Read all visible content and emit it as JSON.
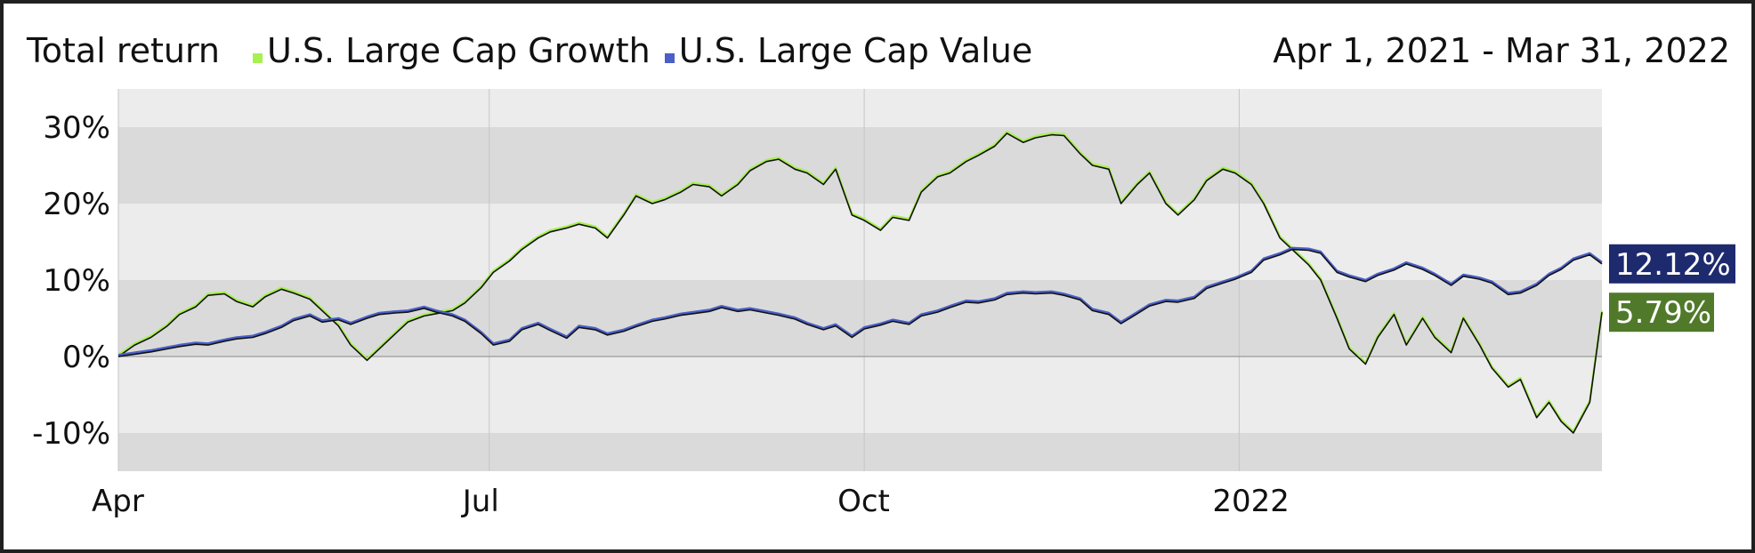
{
  "header": {
    "title": "Total return",
    "date_range": "Apr 1, 2021 - Mar 31, 2022"
  },
  "colors": {
    "growth": "#a8f050",
    "value": "#4a5fc8",
    "growth_label_bg": "#507a2a",
    "value_label_bg": "#1e2a6e",
    "band_dark": "#dadada",
    "band_light": "#ececec"
  },
  "chart_data": {
    "type": "line",
    "title": "Total return",
    "xlabel": "",
    "ylabel": "",
    "x_range": [
      "2021-04-01",
      "2022-03-31"
    ],
    "ylim": [
      -15,
      30
    ],
    "y_ticks": [
      30,
      20,
      10,
      0,
      -10
    ],
    "y_tick_labels": [
      "30%",
      "20%",
      "10%",
      "0%",
      "-10%"
    ],
    "x_ticks": [
      "2021-04-01",
      "2021-07-01",
      "2021-10-01",
      "2022-01-01"
    ],
    "x_tick_labels": [
      "Apr",
      "Jul",
      "Oct",
      "2022"
    ],
    "grid": true,
    "legend_position": "top",
    "series": [
      {
        "name": "U.S. Large Cap Growth",
        "end_label": "5.79%",
        "points": [
          [
            "2021-04-01",
            0
          ],
          [
            "2021-04-05",
            1.5
          ],
          [
            "2021-04-09",
            2.5
          ],
          [
            "2021-04-13",
            4
          ],
          [
            "2021-04-16",
            5.5
          ],
          [
            "2021-04-20",
            6.5
          ],
          [
            "2021-04-23",
            8
          ],
          [
            "2021-04-27",
            8.2
          ],
          [
            "2021-04-30",
            7.2
          ],
          [
            "2021-05-04",
            6.5
          ],
          [
            "2021-05-07",
            7.8
          ],
          [
            "2021-05-11",
            8.8
          ],
          [
            "2021-05-14",
            8.3
          ],
          [
            "2021-05-18",
            7.5
          ],
          [
            "2021-05-21",
            6
          ],
          [
            "2021-05-25",
            4
          ],
          [
            "2021-05-28",
            1.5
          ],
          [
            "2021-06-01",
            -0.5
          ],
          [
            "2021-06-04",
            1
          ],
          [
            "2021-06-08",
            3
          ],
          [
            "2021-06-11",
            4.5
          ],
          [
            "2021-06-15",
            5.3
          ],
          [
            "2021-06-18",
            5.6
          ],
          [
            "2021-06-22",
            6
          ],
          [
            "2021-06-25",
            7
          ],
          [
            "2021-06-29",
            9
          ],
          [
            "2021-07-02",
            11
          ],
          [
            "2021-07-06",
            12.5
          ],
          [
            "2021-07-09",
            14
          ],
          [
            "2021-07-13",
            15.5
          ],
          [
            "2021-07-16",
            16.3
          ],
          [
            "2021-07-20",
            16.8
          ],
          [
            "2021-07-23",
            17.3
          ],
          [
            "2021-07-27",
            16.8
          ],
          [
            "2021-07-30",
            15.5
          ],
          [
            "2021-08-03",
            18.5
          ],
          [
            "2021-08-06",
            21
          ],
          [
            "2021-08-10",
            20
          ],
          [
            "2021-08-13",
            20.5
          ],
          [
            "2021-08-17",
            21.5
          ],
          [
            "2021-08-20",
            22.5
          ],
          [
            "2021-08-24",
            22.2
          ],
          [
            "2021-08-27",
            21
          ],
          [
            "2021-08-31",
            22.5
          ],
          [
            "2021-09-03",
            24.3
          ],
          [
            "2021-09-07",
            25.5
          ],
          [
            "2021-09-10",
            25.8
          ],
          [
            "2021-09-14",
            24.5
          ],
          [
            "2021-09-17",
            24
          ],
          [
            "2021-09-21",
            22.5
          ],
          [
            "2021-09-24",
            24.5
          ],
          [
            "2021-09-28",
            18.5
          ],
          [
            "2021-10-01",
            17.8
          ],
          [
            "2021-10-05",
            16.5
          ],
          [
            "2021-10-08",
            18.2
          ],
          [
            "2021-10-12",
            17.8
          ],
          [
            "2021-10-15",
            21.5
          ],
          [
            "2021-10-19",
            23.5
          ],
          [
            "2021-10-22",
            24
          ],
          [
            "2021-10-26",
            25.5
          ],
          [
            "2021-10-29",
            26.3
          ],
          [
            "2021-11-02",
            27.5
          ],
          [
            "2021-11-05",
            29.2
          ],
          [
            "2021-11-09",
            28
          ],
          [
            "2021-11-12",
            28.6
          ],
          [
            "2021-11-16",
            29
          ],
          [
            "2021-11-19",
            28.9
          ],
          [
            "2021-11-23",
            26.5
          ],
          [
            "2021-11-26",
            25
          ],
          [
            "2021-11-30",
            24.5
          ],
          [
            "2021-12-03",
            20
          ],
          [
            "2021-12-07",
            22.5
          ],
          [
            "2021-12-10",
            24
          ],
          [
            "2021-12-14",
            20
          ],
          [
            "2021-12-17",
            18.5
          ],
          [
            "2021-12-21",
            20.5
          ],
          [
            "2021-12-24",
            23
          ],
          [
            "2021-12-28",
            24.5
          ],
          [
            "2021-12-31",
            24
          ],
          [
            "2022-01-04",
            22.5
          ],
          [
            "2022-01-07",
            20
          ],
          [
            "2022-01-11",
            15.5
          ],
          [
            "2022-01-14",
            14
          ],
          [
            "2022-01-18",
            12
          ],
          [
            "2022-01-21",
            10
          ],
          [
            "2022-01-25",
            5
          ],
          [
            "2022-01-28",
            1
          ],
          [
            "2022-02-01",
            -1
          ],
          [
            "2022-02-04",
            2.5
          ],
          [
            "2022-02-08",
            5.5
          ],
          [
            "2022-02-11",
            1.5
          ],
          [
            "2022-02-15",
            5
          ],
          [
            "2022-02-18",
            2.5
          ],
          [
            "2022-02-22",
            0.5
          ],
          [
            "2022-02-25",
            5
          ],
          [
            "2022-03-01",
            1.5
          ],
          [
            "2022-03-04",
            -1.5
          ],
          [
            "2022-03-08",
            -4
          ],
          [
            "2022-03-11",
            -3
          ],
          [
            "2022-03-15",
            -8
          ],
          [
            "2022-03-18",
            -6
          ],
          [
            "2022-03-21",
            -8.5
          ],
          [
            "2022-03-24",
            -10
          ],
          [
            "2022-03-28",
            -6
          ],
          [
            "2022-03-31",
            5.79
          ]
        ]
      },
      {
        "name": "U.S. Large Cap Value",
        "end_label": "12.12%",
        "points": [
          [
            "2021-04-01",
            0
          ],
          [
            "2021-04-05",
            0.3
          ],
          [
            "2021-04-09",
            0.6
          ],
          [
            "2021-04-13",
            1
          ],
          [
            "2021-04-16",
            1.3
          ],
          [
            "2021-04-20",
            1.6
          ],
          [
            "2021-04-23",
            1.5
          ],
          [
            "2021-04-27",
            2
          ],
          [
            "2021-04-30",
            2.3
          ],
          [
            "2021-05-04",
            2.5
          ],
          [
            "2021-05-07",
            3
          ],
          [
            "2021-05-11",
            3.8
          ],
          [
            "2021-05-14",
            4.7
          ],
          [
            "2021-05-18",
            5.3
          ],
          [
            "2021-05-21",
            4.5
          ],
          [
            "2021-05-25",
            4.8
          ],
          [
            "2021-05-28",
            4.2
          ],
          [
            "2021-06-01",
            5
          ],
          [
            "2021-06-04",
            5.5
          ],
          [
            "2021-06-08",
            5.7
          ],
          [
            "2021-06-11",
            5.8
          ],
          [
            "2021-06-15",
            6.3
          ],
          [
            "2021-06-18",
            5.8
          ],
          [
            "2021-06-22",
            5.3
          ],
          [
            "2021-06-25",
            4.6
          ],
          [
            "2021-06-29",
            3
          ],
          [
            "2021-07-02",
            1.5
          ],
          [
            "2021-07-06",
            2
          ],
          [
            "2021-07-09",
            3.5
          ],
          [
            "2021-07-13",
            4.2
          ],
          [
            "2021-07-16",
            3.4
          ],
          [
            "2021-07-20",
            2.4
          ],
          [
            "2021-07-23",
            3.8
          ],
          [
            "2021-07-27",
            3.5
          ],
          [
            "2021-07-30",
            2.8
          ],
          [
            "2021-08-03",
            3.3
          ],
          [
            "2021-08-06",
            3.9
          ],
          [
            "2021-08-10",
            4.6
          ],
          [
            "2021-08-13",
            4.9
          ],
          [
            "2021-08-17",
            5.4
          ],
          [
            "2021-08-20",
            5.6
          ],
          [
            "2021-08-24",
            5.9
          ],
          [
            "2021-08-27",
            6.4
          ],
          [
            "2021-08-31",
            5.9
          ],
          [
            "2021-09-03",
            6.1
          ],
          [
            "2021-09-07",
            5.7
          ],
          [
            "2021-09-10",
            5.4
          ],
          [
            "2021-09-14",
            4.9
          ],
          [
            "2021-09-17",
            4.2
          ],
          [
            "2021-09-21",
            3.5
          ],
          [
            "2021-09-24",
            4
          ],
          [
            "2021-09-28",
            2.5
          ],
          [
            "2021-10-01",
            3.6
          ],
          [
            "2021-10-05",
            4.1
          ],
          [
            "2021-10-08",
            4.6
          ],
          [
            "2021-10-12",
            4.2
          ],
          [
            "2021-10-15",
            5.3
          ],
          [
            "2021-10-19",
            5.8
          ],
          [
            "2021-10-22",
            6.4
          ],
          [
            "2021-10-26",
            7.1
          ],
          [
            "2021-10-29",
            7
          ],
          [
            "2021-11-02",
            7.4
          ],
          [
            "2021-11-05",
            8.1
          ],
          [
            "2021-11-09",
            8.3
          ],
          [
            "2021-11-12",
            8.2
          ],
          [
            "2021-11-16",
            8.3
          ],
          [
            "2021-11-19",
            8
          ],
          [
            "2021-11-23",
            7.4
          ],
          [
            "2021-11-26",
            6
          ],
          [
            "2021-11-30",
            5.5
          ],
          [
            "2021-12-03",
            4.3
          ],
          [
            "2021-12-07",
            5.6
          ],
          [
            "2021-12-10",
            6.6
          ],
          [
            "2021-12-14",
            7.2
          ],
          [
            "2021-12-17",
            7.1
          ],
          [
            "2021-12-21",
            7.6
          ],
          [
            "2021-12-24",
            8.9
          ],
          [
            "2021-12-28",
            9.6
          ],
          [
            "2021-12-31",
            10.1
          ],
          [
            "2022-01-04",
            11
          ],
          [
            "2022-01-07",
            12.6
          ],
          [
            "2022-01-11",
            13.3
          ],
          [
            "2022-01-14",
            14
          ],
          [
            "2022-01-18",
            13.9
          ],
          [
            "2022-01-21",
            13.5
          ],
          [
            "2022-01-25",
            11
          ],
          [
            "2022-01-28",
            10.4
          ],
          [
            "2022-02-01",
            9.8
          ],
          [
            "2022-02-04",
            10.6
          ],
          [
            "2022-02-08",
            11.3
          ],
          [
            "2022-02-11",
            12.1
          ],
          [
            "2022-02-15",
            11.4
          ],
          [
            "2022-02-18",
            10.6
          ],
          [
            "2022-02-22",
            9.3
          ],
          [
            "2022-02-25",
            10.5
          ],
          [
            "2022-03-01",
            10.1
          ],
          [
            "2022-03-04",
            9.6
          ],
          [
            "2022-03-08",
            8.1
          ],
          [
            "2022-03-11",
            8.3
          ],
          [
            "2022-03-15",
            9.3
          ],
          [
            "2022-03-18",
            10.6
          ],
          [
            "2022-03-21",
            11.4
          ],
          [
            "2022-03-24",
            12.6
          ],
          [
            "2022-03-28",
            13.3
          ],
          [
            "2022-03-31",
            12.12
          ]
        ]
      }
    ]
  }
}
